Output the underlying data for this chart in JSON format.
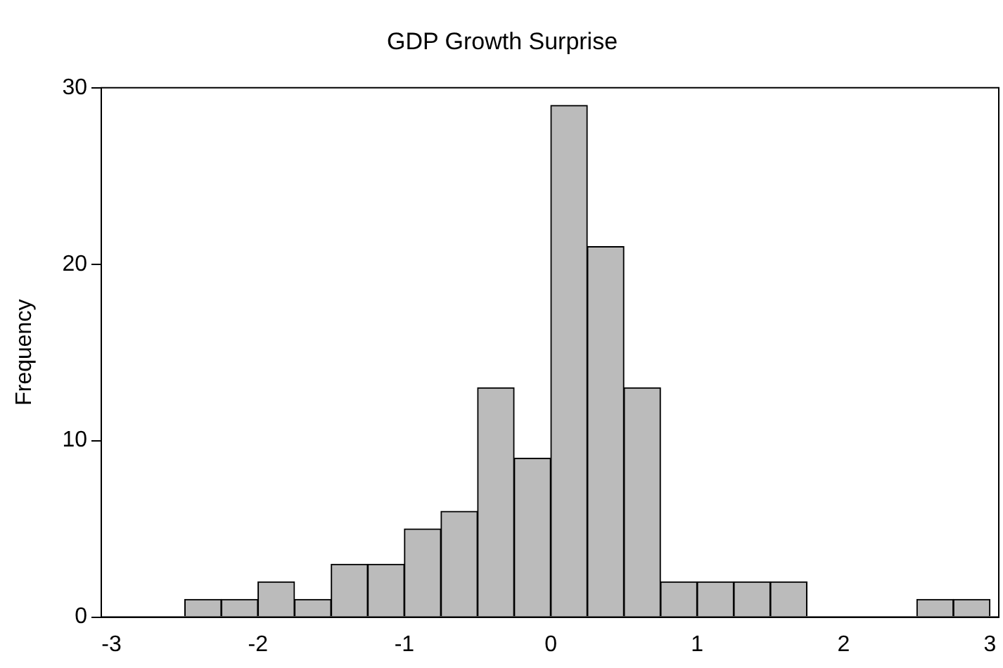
{
  "chart_data": {
    "type": "histogram",
    "title": "GDP Growth Surprise",
    "ylabel": "Frequency",
    "bins": [
      -2.5,
      -2.25,
      -2,
      -1.75,
      -1.5,
      -1.25,
      -1,
      -0.75,
      -0.5,
      -0.25,
      0,
      0.25,
      0.5,
      0.75,
      1,
      1.25,
      1.5,
      1.75,
      2,
      2.25,
      2.5,
      2.75,
      3
    ],
    "values": [
      1,
      1,
      2,
      1,
      3,
      3,
      5,
      6,
      13,
      9,
      29,
      21,
      13,
      2,
      2,
      2,
      2,
      0,
      0,
      0,
      1,
      1
    ],
    "color": "#bbbbbb",
    "xlim": [
      -3.07,
      3.06
    ],
    "xticks": [
      -3,
      -2,
      -1,
      0,
      1,
      2,
      3
    ],
    "ylim": [
      0,
      30
    ],
    "yticks": [
      0,
      10,
      20,
      30
    ],
    "grid": false,
    "legend": false
  }
}
